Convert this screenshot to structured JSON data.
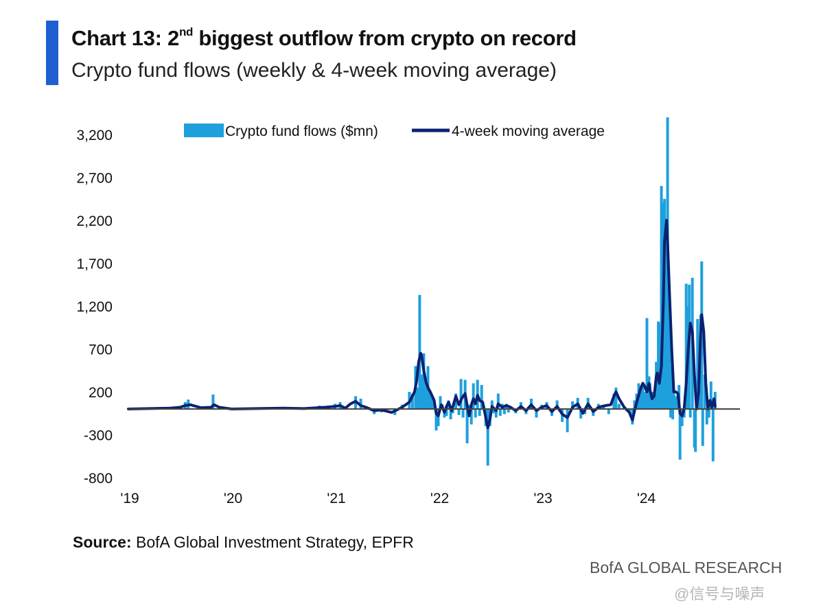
{
  "header": {
    "title_prefix": "Chart 13: 2",
    "title_sup": "nd",
    "title_suffix": " biggest outflow from crypto on record",
    "subtitle": "Crypto fund flows (weekly & 4-week moving average)"
  },
  "footer": {
    "source_label": "Source:",
    "source_text": " BofA Global Investment Strategy, EPFR",
    "brand": "BofA GLOBAL RESEARCH",
    "watermark": "@信号与噪声"
  },
  "colors": {
    "accent": "#1f5fd1",
    "bars": "#1ea0dc",
    "line": "#0c2170",
    "zero_line": "#444444"
  },
  "chart_data": {
    "type": "bar",
    "title": "Crypto fund flows (weekly & 4-week moving average)",
    "xlabel": "",
    "ylabel": "",
    "ylim": [
      -800,
      3400
    ],
    "x_range": [
      2019.0,
      2024.95
    ],
    "yticks": [
      3200,
      2700,
      2200,
      1700,
      1200,
      700,
      200,
      -300,
      -800
    ],
    "ytick_labels": [
      "3,200",
      "2,700",
      "2,200",
      "1,700",
      "1,200",
      "700",
      "200",
      "-300",
      "-800"
    ],
    "xticks": [
      2019,
      2020,
      2021,
      2022,
      2023,
      2024
    ],
    "xtick_labels": [
      "'19",
      "'20",
      "'21",
      "'22",
      "'23",
      "'24"
    ],
    "legend_position": "top",
    "series": [
      {
        "name": "Crypto fund flows ($mn)",
        "type": "bar",
        "points": [
          [
            2019.55,
            80
          ],
          [
            2019.58,
            110
          ],
          [
            2019.82,
            170
          ],
          [
            2020.5,
            20
          ],
          [
            2020.85,
            40
          ],
          [
            2021.0,
            60
          ],
          [
            2021.05,
            80
          ],
          [
            2021.2,
            150
          ],
          [
            2021.25,
            120
          ],
          [
            2021.38,
            -60
          ],
          [
            2021.45,
            -40
          ],
          [
            2021.58,
            -70
          ],
          [
            2021.65,
            50
          ],
          [
            2021.72,
            200
          ],
          [
            2021.75,
            180
          ],
          [
            2021.78,
            500
          ],
          [
            2021.8,
            250
          ],
          [
            2021.82,
            1330
          ],
          [
            2021.84,
            400
          ],
          [
            2021.86,
            650
          ],
          [
            2021.88,
            300
          ],
          [
            2021.9,
            500
          ],
          [
            2021.92,
            220
          ],
          [
            2021.94,
            150
          ],
          [
            2021.96,
            100
          ],
          [
            2021.98,
            -250
          ],
          [
            2022.0,
            -200
          ],
          [
            2022.02,
            150
          ],
          [
            2022.04,
            50
          ],
          [
            2022.06,
            -100
          ],
          [
            2022.08,
            -80
          ],
          [
            2022.1,
            100
          ],
          [
            2022.12,
            -120
          ],
          [
            2022.14,
            -50
          ],
          [
            2022.17,
            180
          ],
          [
            2022.2,
            -70
          ],
          [
            2022.22,
            350
          ],
          [
            2022.24,
            -100
          ],
          [
            2022.26,
            340
          ],
          [
            2022.28,
            -400
          ],
          [
            2022.3,
            50
          ],
          [
            2022.32,
            -180
          ],
          [
            2022.34,
            300
          ],
          [
            2022.36,
            -100
          ],
          [
            2022.38,
            340
          ],
          [
            2022.4,
            -80
          ],
          [
            2022.42,
            280
          ],
          [
            2022.44,
            40
          ],
          [
            2022.46,
            -200
          ],
          [
            2022.48,
            -660
          ],
          [
            2022.5,
            -200
          ],
          [
            2022.52,
            100
          ],
          [
            2022.54,
            -50
          ],
          [
            2022.56,
            -100
          ],
          [
            2022.58,
            180
          ],
          [
            2022.6,
            -80
          ],
          [
            2022.62,
            60
          ],
          [
            2022.64,
            -60
          ],
          [
            2022.66,
            60
          ],
          [
            2022.68,
            -40
          ],
          [
            2022.7,
            30
          ],
          [
            2022.75,
            -50
          ],
          [
            2022.8,
            80
          ],
          [
            2022.85,
            -60
          ],
          [
            2022.9,
            120
          ],
          [
            2022.95,
            -100
          ],
          [
            2023.0,
            50
          ],
          [
            2023.05,
            80
          ],
          [
            2023.1,
            -80
          ],
          [
            2023.15,
            100
          ],
          [
            2023.2,
            -150
          ],
          [
            2023.25,
            -270
          ],
          [
            2023.3,
            90
          ],
          [
            2023.35,
            130
          ],
          [
            2023.38,
            -110
          ],
          [
            2023.42,
            -60
          ],
          [
            2023.45,
            130
          ],
          [
            2023.5,
            -80
          ],
          [
            2023.55,
            60
          ],
          [
            2023.6,
            50
          ],
          [
            2023.65,
            -60
          ],
          [
            2023.7,
            180
          ],
          [
            2023.72,
            250
          ],
          [
            2023.75,
            60
          ],
          [
            2023.8,
            30
          ],
          [
            2023.85,
            -50
          ],
          [
            2023.88,
            -180
          ],
          [
            2023.9,
            100
          ],
          [
            2023.92,
            180
          ],
          [
            2023.94,
            300
          ],
          [
            2023.96,
            200
          ],
          [
            2023.98,
            310
          ],
          [
            2024.0,
            200
          ],
          [
            2024.02,
            1060
          ],
          [
            2024.03,
            150
          ],
          [
            2024.04,
            380
          ],
          [
            2024.05,
            300
          ],
          [
            2024.07,
            200
          ],
          [
            2024.09,
            150
          ],
          [
            2024.11,
            550
          ],
          [
            2024.13,
            1020
          ],
          [
            2024.14,
            1000
          ],
          [
            2024.16,
            2600
          ],
          [
            2024.18,
            2400
          ],
          [
            2024.19,
            2450
          ],
          [
            2024.2,
            700
          ],
          [
            2024.21,
            2000
          ],
          [
            2024.22,
            3400
          ],
          [
            2024.23,
            1100
          ],
          [
            2024.24,
            800
          ],
          [
            2024.25,
            -100
          ],
          [
            2024.26,
            500
          ],
          [
            2024.27,
            -120
          ],
          [
            2024.28,
            200
          ],
          [
            2024.3,
            150
          ],
          [
            2024.32,
            200
          ],
          [
            2024.33,
            280
          ],
          [
            2024.34,
            -590
          ],
          [
            2024.36,
            -200
          ],
          [
            2024.38,
            -100
          ],
          [
            2024.4,
            1460
          ],
          [
            2024.42,
            1200
          ],
          [
            2024.43,
            1450
          ],
          [
            2024.44,
            -100
          ],
          [
            2024.46,
            1530
          ],
          [
            2024.48,
            -450
          ],
          [
            2024.49,
            -500
          ],
          [
            2024.5,
            300
          ],
          [
            2024.51,
            1050
          ],
          [
            2024.52,
            200
          ],
          [
            2024.54,
            1100
          ],
          [
            2024.55,
            1720
          ],
          [
            2024.56,
            -430
          ],
          [
            2024.58,
            400
          ],
          [
            2024.6,
            -180
          ],
          [
            2024.62,
            -100
          ],
          [
            2024.64,
            320
          ],
          [
            2024.66,
            -610
          ],
          [
            2024.68,
            200
          ]
        ]
      },
      {
        "name": "4-week moving average",
        "type": "line",
        "points": [
          [
            2019.0,
            0
          ],
          [
            2019.2,
            5
          ],
          [
            2019.4,
            10
          ],
          [
            2019.5,
            20
          ],
          [
            2019.55,
            40
          ],
          [
            2019.6,
            50
          ],
          [
            2019.7,
            15
          ],
          [
            2019.8,
            20
          ],
          [
            2019.83,
            50
          ],
          [
            2019.88,
            20
          ],
          [
            2020.0,
            0
          ],
          [
            2020.5,
            10
          ],
          [
            2020.7,
            5
          ],
          [
            2020.9,
            20
          ],
          [
            2021.0,
            30
          ],
          [
            2021.05,
            40
          ],
          [
            2021.1,
            10
          ],
          [
            2021.15,
            60
          ],
          [
            2021.2,
            90
          ],
          [
            2021.25,
            40
          ],
          [
            2021.3,
            20
          ],
          [
            2021.38,
            -20
          ],
          [
            2021.45,
            -10
          ],
          [
            2021.55,
            -40
          ],
          [
            2021.65,
            20
          ],
          [
            2021.72,
            80
          ],
          [
            2021.77,
            200
          ],
          [
            2021.79,
            320
          ],
          [
            2021.81,
            550
          ],
          [
            2021.83,
            650
          ],
          [
            2021.84,
            620
          ],
          [
            2021.86,
            450
          ],
          [
            2021.88,
            320
          ],
          [
            2021.9,
            250
          ],
          [
            2021.93,
            180
          ],
          [
            2021.96,
            100
          ],
          [
            2021.98,
            -50
          ],
          [
            2022.0,
            -80
          ],
          [
            2022.03,
            50
          ],
          [
            2022.06,
            -40
          ],
          [
            2022.08,
            30
          ],
          [
            2022.1,
            80
          ],
          [
            2022.13,
            -20
          ],
          [
            2022.17,
            150
          ],
          [
            2022.2,
            50
          ],
          [
            2022.23,
            130
          ],
          [
            2022.26,
            180
          ],
          [
            2022.28,
            40
          ],
          [
            2022.3,
            -80
          ],
          [
            2022.32,
            50
          ],
          [
            2022.34,
            120
          ],
          [
            2022.36,
            60
          ],
          [
            2022.38,
            160
          ],
          [
            2022.4,
            100
          ],
          [
            2022.43,
            80
          ],
          [
            2022.46,
            -100
          ],
          [
            2022.48,
            -220
          ],
          [
            2022.5,
            -120
          ],
          [
            2022.52,
            30
          ],
          [
            2022.56,
            -20
          ],
          [
            2022.58,
            60
          ],
          [
            2022.62,
            20
          ],
          [
            2022.66,
            40
          ],
          [
            2022.7,
            20
          ],
          [
            2022.75,
            -20
          ],
          [
            2022.8,
            30
          ],
          [
            2022.85,
            -20
          ],
          [
            2022.9,
            50
          ],
          [
            2022.95,
            -20
          ],
          [
            2023.0,
            20
          ],
          [
            2023.05,
            40
          ],
          [
            2023.1,
            -30
          ],
          [
            2023.15,
            30
          ],
          [
            2023.2,
            -60
          ],
          [
            2023.25,
            -100
          ],
          [
            2023.3,
            20
          ],
          [
            2023.35,
            60
          ],
          [
            2023.4,
            -50
          ],
          [
            2023.45,
            60
          ],
          [
            2023.5,
            -30
          ],
          [
            2023.55,
            20
          ],
          [
            2023.62,
            40
          ],
          [
            2023.67,
            50
          ],
          [
            2023.7,
            150
          ],
          [
            2023.72,
            200
          ],
          [
            2023.75,
            120
          ],
          [
            2023.8,
            20
          ],
          [
            2023.85,
            -40
          ],
          [
            2023.88,
            -130
          ],
          [
            2023.9,
            -20
          ],
          [
            2023.93,
            120
          ],
          [
            2023.96,
            240
          ],
          [
            2023.98,
            300
          ],
          [
            2024.0,
            260
          ],
          [
            2024.02,
            200
          ],
          [
            2024.04,
            300
          ],
          [
            2024.05,
            220
          ],
          [
            2024.07,
            120
          ],
          [
            2024.09,
            150
          ],
          [
            2024.11,
            380
          ],
          [
            2024.12,
            420
          ],
          [
            2024.14,
            300
          ],
          [
            2024.16,
            500
          ],
          [
            2024.18,
            1300
          ],
          [
            2024.19,
            1950
          ],
          [
            2024.21,
            2200
          ],
          [
            2024.22,
            1950
          ],
          [
            2024.24,
            1300
          ],
          [
            2024.26,
            700
          ],
          [
            2024.28,
            200
          ],
          [
            2024.3,
            200
          ],
          [
            2024.32,
            180
          ],
          [
            2024.34,
            -50
          ],
          [
            2024.36,
            -80
          ],
          [
            2024.38,
            0
          ],
          [
            2024.4,
            300
          ],
          [
            2024.42,
            700
          ],
          [
            2024.44,
            1000
          ],
          [
            2024.46,
            900
          ],
          [
            2024.48,
            400
          ],
          [
            2024.5,
            0
          ],
          [
            2024.52,
            200
          ],
          [
            2024.54,
            900
          ],
          [
            2024.55,
            1100
          ],
          [
            2024.57,
            900
          ],
          [
            2024.59,
            300
          ],
          [
            2024.61,
            0
          ],
          [
            2024.63,
            100
          ],
          [
            2024.65,
            20
          ],
          [
            2024.67,
            120
          ],
          [
            2024.68,
            30
          ]
        ]
      }
    ]
  }
}
